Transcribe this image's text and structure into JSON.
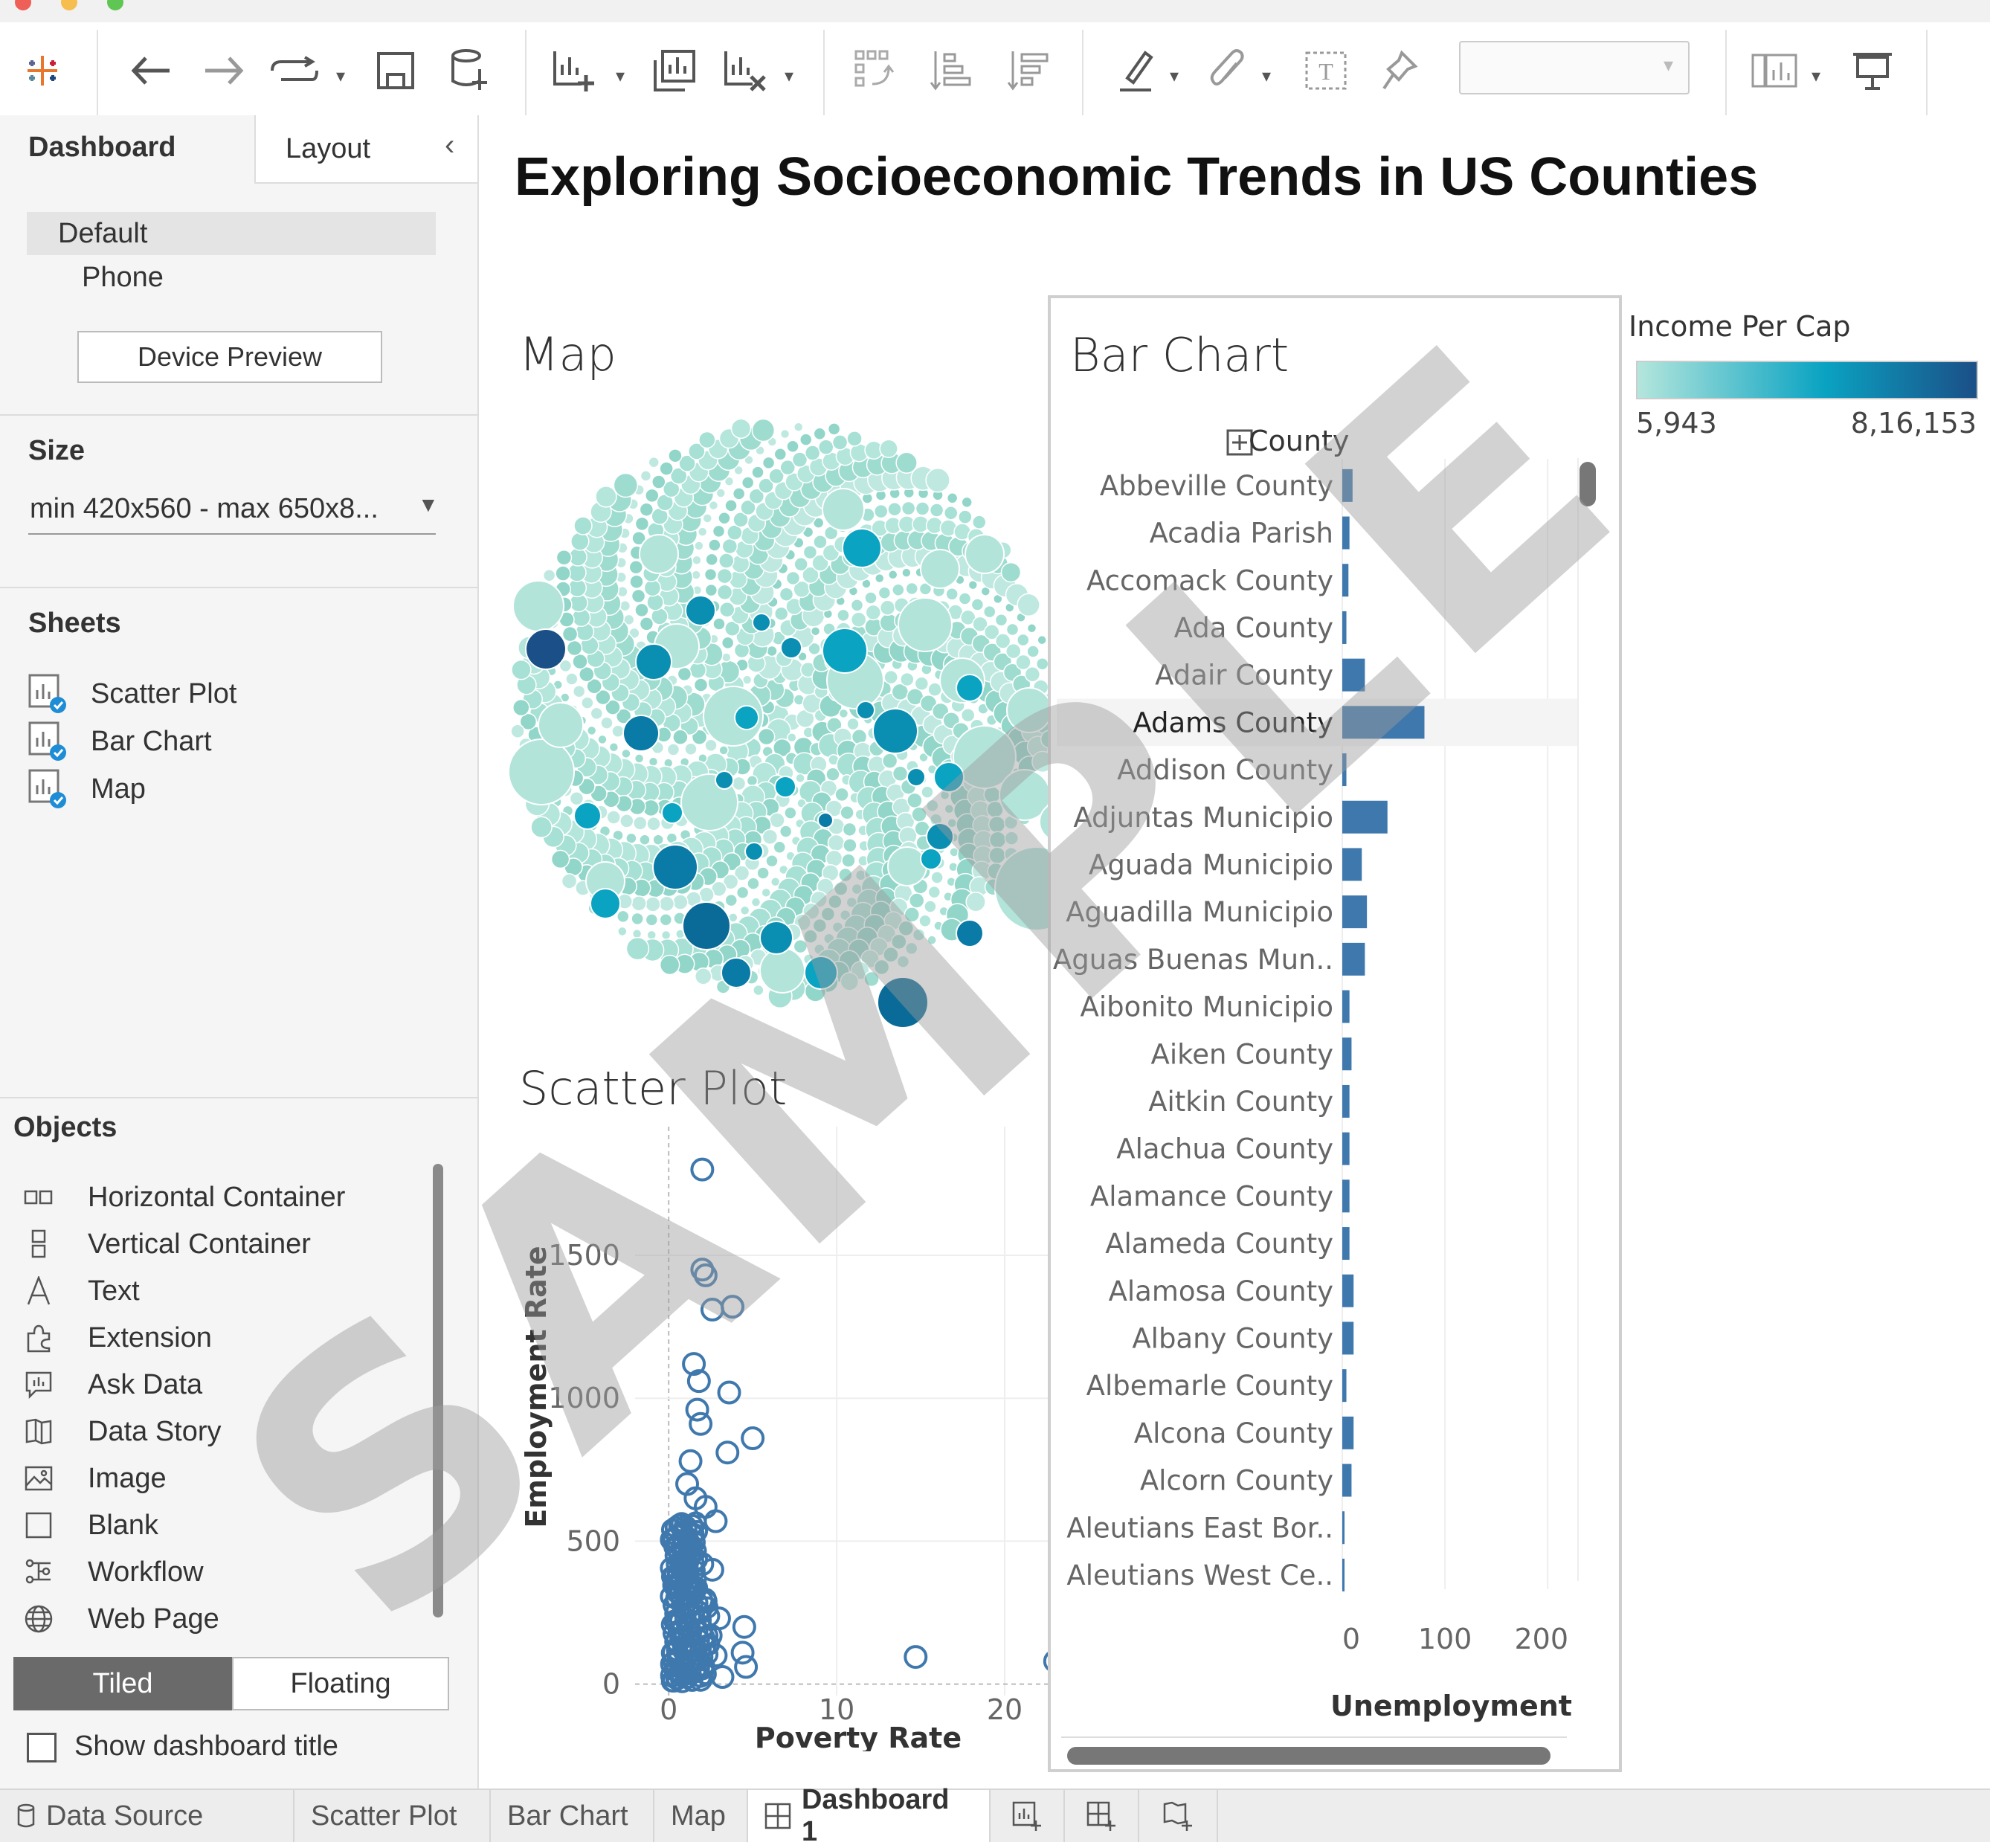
{
  "toolbar": {
    "icons": [
      "tableau-logo-icon",
      "undo-icon",
      "redo-icon",
      "replay-icon",
      "save-icon",
      "new-datasource-icon",
      "new-worksheet-icon",
      "duplicate-sheet-icon",
      "clear-sheet-icon",
      "swap-icon",
      "sort-ascending-icon",
      "sort-descending-icon",
      "highlight-icon",
      "group-icon",
      "labels-icon",
      "pin-icon",
      "fit-dropdown",
      "show-me-icon",
      "presentation-icon"
    ]
  },
  "left": {
    "tab_dashboard": "Dashboard",
    "tab_layout": "Layout",
    "device_default": "Default",
    "device_phone": "Phone",
    "device_preview": "Device Preview",
    "size_heading": "Size",
    "size_value": "min 420x560 - max 650x8...",
    "sheets_heading": "Sheets",
    "sheets": [
      {
        "label": "Scatter Plot"
      },
      {
        "label": "Bar Chart"
      },
      {
        "label": "Map"
      }
    ],
    "objects_heading": "Objects",
    "objects": [
      {
        "label": "Horizontal Container",
        "icon": "horizontal-container-icon"
      },
      {
        "label": "Vertical Container",
        "icon": "vertical-container-icon"
      },
      {
        "label": "Text",
        "icon": "text-icon"
      },
      {
        "label": "Extension",
        "icon": "extension-icon"
      },
      {
        "label": "Ask Data",
        "icon": "ask-data-icon"
      },
      {
        "label": "Data Story",
        "icon": "data-story-icon"
      },
      {
        "label": "Image",
        "icon": "image-icon"
      },
      {
        "label": "Blank",
        "icon": "blank-icon"
      },
      {
        "label": "Workflow",
        "icon": "workflow-icon"
      },
      {
        "label": "Web Page",
        "icon": "web-page-icon"
      }
    ],
    "tiled": "Tiled",
    "floating": "Floating",
    "show_title": "Show dashboard title"
  },
  "dashboard": {
    "title": "Exploring Socioeconomic Trends in US Counties",
    "map_title": "Map",
    "bar_title": "Bar Chart",
    "scatter_title": "Scatter Plot",
    "legend_title": "Income Per Cap",
    "legend_min": "5,943",
    "legend_max": "8,16,153",
    "legend_colors": [
      "#b4e6dc",
      "#0aa3c2",
      "#1b4f87"
    ],
    "watermark": "SAMPLE"
  },
  "chart_data": [
    {
      "type": "bar",
      "orientation": "horizontal",
      "title": "Bar Chart",
      "category_header": "County",
      "categories": [
        "Abbeville County",
        "Acadia Parish",
        "Accomack County",
        "Ada County",
        "Adair County",
        "Adams County",
        "Addison County",
        "Adjuntas Municipio",
        "Aguada Municipio",
        "Aguadilla Municipio",
        "Aguas Buenas Mun..",
        "Aibonito Municipio",
        "Aiken County",
        "Aitkin County",
        "Alachua County",
        "Alamance County",
        "Alameda County",
        "Alamosa County",
        "Albany County",
        "Albemarle County",
        "Alcona County",
        "Alcorn County",
        "Aleutians East Bor..",
        "Aleutians West Ce.."
      ],
      "values": [
        10,
        7,
        6,
        4,
        22,
        80,
        4,
        44,
        19,
        24,
        22,
        7,
        9,
        7,
        7,
        7,
        7,
        11,
        11,
        4,
        11,
        9,
        2,
        2
      ],
      "highlighted": "Adams County",
      "xlabel": "Unemployment",
      "xticks": [
        "0",
        "100",
        "200"
      ],
      "xlim": [
        0,
        210
      ],
      "color": "#3f78ad"
    },
    {
      "type": "scatter",
      "title": "Scatter Plot",
      "xlabel": "Poverty Rate",
      "ylabel": "Employment Rate",
      "xticks": [
        "0",
        "10",
        "20"
      ],
      "yticks": [
        "0",
        "500",
        "1000",
        "1500"
      ],
      "xlim": [
        -2,
        25
      ],
      "ylim": [
        -40,
        1950
      ],
      "points": [
        [
          2.0,
          1800
        ],
        [
          2.0,
          1450
        ],
        [
          2.2,
          1430
        ],
        [
          2.6,
          1310
        ],
        [
          3.8,
          1320
        ],
        [
          1.5,
          1120
        ],
        [
          1.8,
          1060
        ],
        [
          3.6,
          1020
        ],
        [
          1.7,
          960
        ],
        [
          1.9,
          910
        ],
        [
          5.0,
          860
        ],
        [
          3.5,
          810
        ],
        [
          1.3,
          780
        ],
        [
          1.1,
          700
        ],
        [
          1.6,
          650
        ],
        [
          2.2,
          620
        ],
        [
          2.8,
          570
        ],
        [
          1.0,
          550
        ],
        [
          1.4,
          520
        ],
        [
          0.8,
          480
        ],
        [
          1.2,
          440
        ],
        [
          2.0,
          420
        ],
        [
          2.6,
          400
        ],
        [
          0.6,
          380
        ],
        [
          1.0,
          350
        ],
        [
          1.5,
          330
        ],
        [
          0.5,
          300
        ],
        [
          2.2,
          290
        ],
        [
          0.9,
          270
        ],
        [
          1.8,
          250
        ],
        [
          3.0,
          230
        ],
        [
          0.4,
          220
        ],
        [
          1.2,
          200
        ],
        [
          0.7,
          180
        ],
        [
          2.5,
          170
        ],
        [
          0.5,
          150
        ],
        [
          1.5,
          140
        ],
        [
          0.9,
          120
        ],
        [
          0.3,
          110
        ],
        [
          4.5,
          200
        ],
        [
          4.4,
          110
        ],
        [
          2.8,
          100
        ],
        [
          0.6,
          90
        ],
        [
          1.3,
          80
        ],
        [
          0.2,
          70
        ],
        [
          0.9,
          60
        ],
        [
          2.0,
          55
        ],
        [
          0.4,
          50
        ],
        [
          4.6,
          60
        ],
        [
          1.6,
          45
        ],
        [
          0.7,
          35
        ],
        [
          0.2,
          30
        ],
        [
          1.1,
          25
        ],
        [
          3.2,
          25
        ],
        [
          0.5,
          20
        ],
        [
          1.9,
          15
        ],
        [
          0.3,
          12
        ],
        [
          0.8,
          10
        ],
        [
          14.7,
          95
        ],
        [
          23.0,
          80
        ]
      ]
    }
  ]
}
